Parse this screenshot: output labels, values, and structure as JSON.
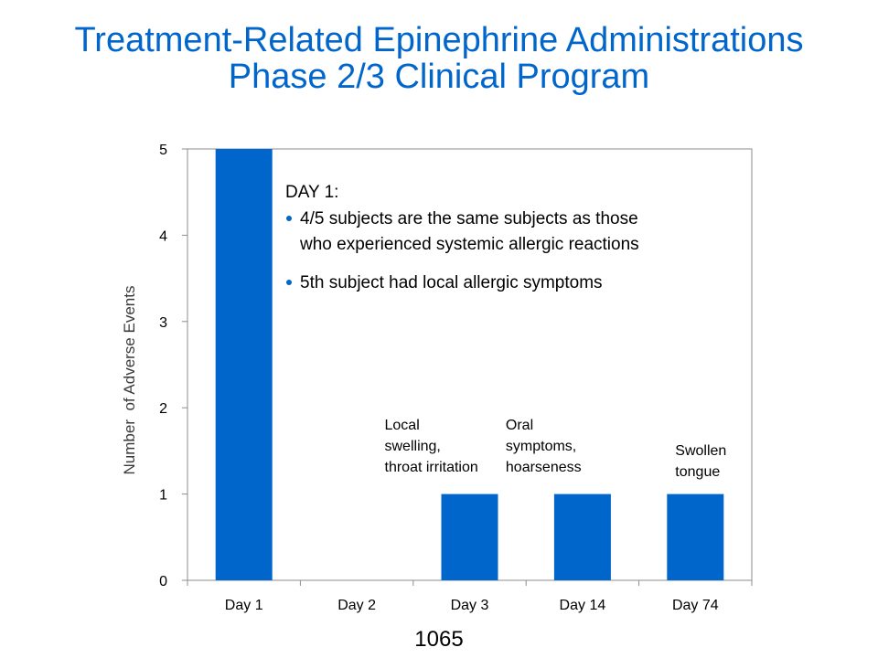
{
  "title": {
    "line1": "Treatment-Related Epinephrine Administrations",
    "line2": "Phase 2/3 Clinical Program"
  },
  "page_number": "1065",
  "colors": {
    "title": "#0066cc",
    "bar": "#0066cc",
    "bullet": "#0066cc"
  },
  "chart_data": {
    "type": "bar",
    "categories": [
      "Day 1",
      "Day 2",
      "Day 3",
      "Day 14",
      "Day 74"
    ],
    "values": [
      5,
      0,
      1,
      1,
      1
    ],
    "ylabel": "Number  of Adverse Events",
    "xlabel": "",
    "ylim": [
      0,
      5
    ],
    "yticks": [
      0,
      1,
      2,
      3,
      4,
      5
    ],
    "grid": false,
    "bar_annotations": [
      {
        "category": "Day 3",
        "lines": [
          "Local",
          "swelling,",
          "throat irritation"
        ]
      },
      {
        "category": "Day 14",
        "lines": [
          "Oral",
          "symptoms,",
          "hoarseness"
        ]
      },
      {
        "category": "Day 74",
        "lines": [
          "Swollen",
          "tongue"
        ]
      }
    ],
    "note": {
      "heading": "DAY 1:",
      "bullets": [
        [
          "4/5 subjects are the same subjects as those",
          "who experienced systemic allergic reactions"
        ],
        [
          "5th subject had local allergic symptoms"
        ]
      ]
    }
  }
}
